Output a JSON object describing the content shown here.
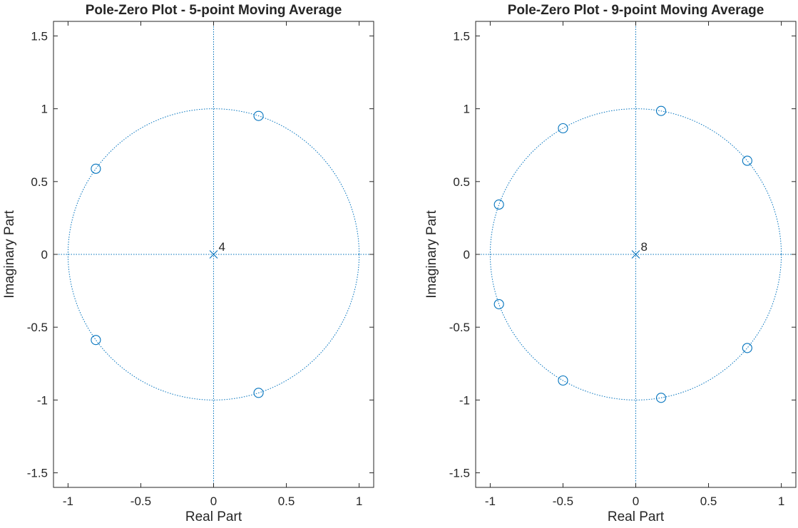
{
  "colors": {
    "marker": "#0072BD",
    "axes": "#262626",
    "guide": "#0072BD"
  },
  "chart_data": [
    {
      "type": "scatter",
      "title": "Pole-Zero Plot - 5-point Moving Average",
      "xlabel": "Real Part",
      "ylabel": "Imaginary Part",
      "xlim": [
        -1.1,
        1.1
      ],
      "ylim": [
        -1.6,
        1.6
      ],
      "xticks": [
        -1,
        -0.5,
        0,
        0.5,
        1
      ],
      "xtick_labels": [
        "-1",
        "-0.5",
        "0",
        "0.5",
        "1"
      ],
      "yticks": [
        -1.5,
        -1,
        -0.5,
        0,
        0.5,
        1,
        1.5
      ],
      "ytick_labels": [
        "-1.5",
        "-1",
        "-0.5",
        "0",
        "0.5",
        "1",
        "1.5"
      ],
      "unit_circle": true,
      "grid": false,
      "zeros": [
        [
          0.309,
          0.951
        ],
        [
          -0.809,
          0.588
        ],
        [
          -0.809,
          -0.588
        ],
        [
          0.309,
          -0.951
        ]
      ],
      "poles": [
        [
          0,
          0
        ]
      ],
      "pole_multiplicity": "4"
    },
    {
      "type": "scatter",
      "title": "Pole-Zero Plot - 9-point Moving Average",
      "xlabel": "Real Part",
      "ylabel": "Imaginary Part",
      "xlim": [
        -1.1,
        1.1
      ],
      "ylim": [
        -1.6,
        1.6
      ],
      "xticks": [
        -1,
        -0.5,
        0,
        0.5,
        1
      ],
      "xtick_labels": [
        "-1",
        "-0.5",
        "0",
        "0.5",
        "1"
      ],
      "yticks": [
        -1.5,
        -1,
        -0.5,
        0,
        0.5,
        1,
        1.5
      ],
      "ytick_labels": [
        "-1.5",
        "-1",
        "-0.5",
        "0",
        "0.5",
        "1",
        "1.5"
      ],
      "unit_circle": true,
      "grid": false,
      "zeros": [
        [
          0.174,
          0.985
        ],
        [
          0.766,
          0.643
        ],
        [
          -0.5,
          0.866
        ],
        [
          -0.94,
          0.342
        ],
        [
          -0.94,
          -0.342
        ],
        [
          -0.5,
          -0.866
        ],
        [
          0.766,
          -0.643
        ],
        [
          0.174,
          -0.985
        ]
      ],
      "poles": [
        [
          0,
          0
        ]
      ],
      "pole_multiplicity": "8"
    }
  ]
}
